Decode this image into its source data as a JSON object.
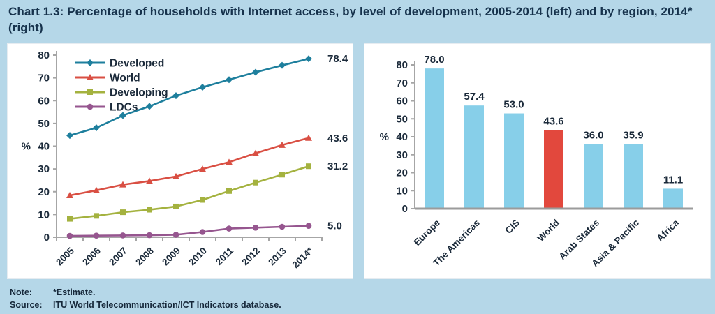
{
  "page": {
    "title": "Chart 1.3: Percentage of households with Internet access, by level of development, 2005-2014 (left) and by region, 2014* (right)",
    "note_label": "Note:",
    "note_text": "*Estimate.",
    "source_label": "Source:",
    "source_text": "ITU World Telecommunication/ICT Indicators database."
  },
  "colors": {
    "background": "#b5d7e8",
    "panel": "#ffffff",
    "axis_gray": "#a6a6a6",
    "baseline_gray": "#9b9b9b",
    "text_dark": "#1b2a3a",
    "developed": "#1e7f9d",
    "world": "#d94f43",
    "developing": "#a4b23f",
    "ldcs": "#96568f",
    "bar_blue": "#87cfe9",
    "bar_red": "#e2483d"
  },
  "chart_data": [
    {
      "type": "line",
      "title": "Percentage of households with Internet access, by level of development, 2005-2014",
      "ylabel": "%",
      "ylim": [
        0,
        80
      ],
      "yticks": [
        0,
        10,
        20,
        30,
        40,
        50,
        60,
        70,
        80
      ],
      "grid": false,
      "legend_position": "top-left",
      "categories": [
        "2005",
        "2006",
        "2007",
        "2008",
        "2009",
        "2010",
        "2011",
        "2012",
        "2013",
        "2014*"
      ],
      "series": [
        {
          "name": "Developed",
          "marker": "diamond",
          "color_key": "developed",
          "end_label": "78.4",
          "values": [
            44.7,
            48.1,
            53.5,
            57.5,
            62.2,
            65.9,
            69.2,
            72.5,
            75.5,
            78.4
          ]
        },
        {
          "name": "World",
          "marker": "triangle",
          "color_key": "world",
          "end_label": "43.6",
          "values": [
            18.4,
            20.6,
            23.1,
            24.7,
            26.7,
            30.0,
            33.0,
            36.9,
            40.5,
            43.6
          ]
        },
        {
          "name": "Developing",
          "marker": "square",
          "color_key": "developing",
          "end_label": "31.2",
          "values": [
            8.1,
            9.4,
            11.0,
            12.1,
            13.5,
            16.4,
            20.3,
            24.0,
            27.5,
            31.2
          ]
        },
        {
          "name": "LDCs",
          "marker": "circle",
          "color_key": "ldcs",
          "end_label": "5.0",
          "values": [
            0.6,
            0.7,
            0.8,
            0.9,
            1.1,
            2.3,
            3.8,
            4.2,
            4.6,
            5.0
          ]
        }
      ]
    },
    {
      "type": "bar",
      "title": "Percentage of households with Internet access, by region, 2014*",
      "ylabel": "%",
      "ylim": [
        0,
        80
      ],
      "yticks": [
        0,
        10,
        20,
        30,
        40,
        50,
        60,
        70,
        80
      ],
      "grid": false,
      "categories": [
        "Europe",
        "The Americas",
        "CIS",
        "World",
        "Arab States",
        "Asia & Pacific",
        "Africa"
      ],
      "values": [
        78.0,
        57.4,
        53.0,
        43.6,
        36.0,
        35.9,
        11.1
      ],
      "data_labels": [
        "78.0",
        "57.4",
        "53.0",
        "43.6",
        "36.0",
        "35.9",
        "11.1"
      ],
      "bar_color_keys": [
        "bar_blue",
        "bar_blue",
        "bar_blue",
        "bar_red",
        "bar_blue",
        "bar_blue",
        "bar_blue"
      ]
    }
  ]
}
